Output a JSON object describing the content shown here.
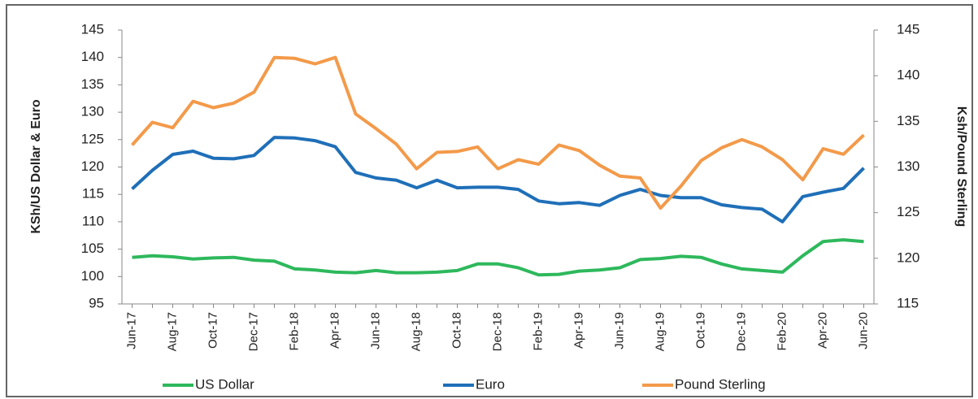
{
  "chart_data": {
    "type": "line",
    "y_label": "KSh/US Dollar & Euro",
    "y2_label": "Ksh/Pound Sterling",
    "categories": [
      "Jun-17",
      null,
      "Aug-17",
      null,
      "Oct-17",
      null,
      "Dec-17",
      null,
      "Feb-18",
      null,
      "Apr-18",
      null,
      "Jun-18",
      null,
      "Aug-18",
      null,
      "Oct-18",
      null,
      "Dec-18",
      null,
      "Feb-19",
      null,
      "Apr-19",
      null,
      "Jun-19",
      null,
      "Aug-19",
      null,
      "Oct-19",
      null,
      "Dec-19",
      null,
      "Feb-20",
      null,
      "Apr-20",
      null,
      "Jun-20"
    ],
    "series": [
      {
        "name": "US Dollar",
        "color": "#2eb85c",
        "values": [
          103.5,
          103.8,
          103.6,
          103.2,
          103.4,
          103.5,
          103.0,
          102.8,
          101.4,
          101.2,
          100.8,
          100.7,
          101.1,
          100.7,
          100.7,
          100.8,
          101.1,
          102.3,
          102.3,
          101.6,
          100.3,
          100.4,
          101.0,
          101.2,
          101.6,
          103.1,
          103.3,
          103.7,
          103.5,
          102.3,
          101.4,
          101.1,
          100.8,
          103.8,
          106.4,
          106.7,
          106.4
        ]
      },
      {
        "name": "Euro",
        "color": "#1f6fb8",
        "values": [
          116.0,
          119.4,
          122.3,
          122.9,
          121.6,
          121.5,
          122.1,
          125.4,
          125.3,
          124.8,
          123.7,
          119.0,
          118.0,
          117.6,
          116.2,
          117.6,
          116.2,
          116.3,
          116.3,
          115.9,
          113.8,
          113.3,
          113.5,
          113.0,
          114.8,
          115.9,
          114.8,
          114.4,
          114.4,
          113.1,
          112.6,
          112.3,
          110.0,
          114.6,
          115.4,
          116.1,
          119.8
        ]
      },
      {
        "name": "Pound Sterling",
        "color": "#f39a4a",
        "axis": "y2",
        "values": [
          132.4,
          134.9,
          134.3,
          137.2,
          136.5,
          137.0,
          138.2,
          142.0,
          141.9,
          141.3,
          142.0,
          135.8,
          134.2,
          132.5,
          129.8,
          131.6,
          131.7,
          132.2,
          129.8,
          130.8,
          130.3,
          132.4,
          131.8,
          130.2,
          129.0,
          128.8,
          125.5,
          127.9,
          130.7,
          132.1,
          133.0,
          132.2,
          130.8,
          128.6,
          132.0,
          131.4,
          133.5
        ]
      }
    ],
    "ylim": [
      95,
      145
    ],
    "yticks": [
      95,
      100,
      105,
      110,
      115,
      120,
      125,
      130,
      135,
      140,
      145
    ],
    "y2lim": [
      115,
      145
    ],
    "y2ticks": [
      115,
      120,
      125,
      130,
      135,
      140,
      145
    ],
    "grid": false,
    "legend": "bottom"
  }
}
